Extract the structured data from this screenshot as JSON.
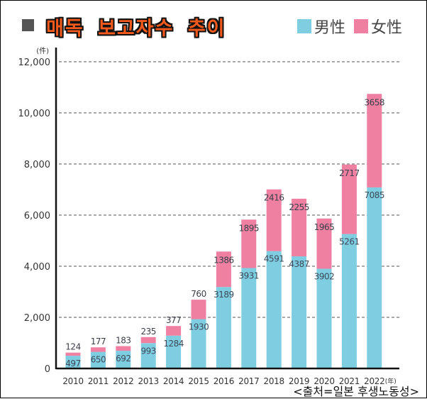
{
  "header": {
    "title": "매독 보고자수 추이",
    "legend": [
      {
        "label": "男性",
        "color": "#7ecde0"
      },
      {
        "label": "女性",
        "color": "#ef80a2"
      }
    ]
  },
  "source": "<출처=일본 후생노동성>",
  "chart_data": {
    "type": "bar",
    "stacked": true,
    "title": "매독 보고자수 추이",
    "xlabel": "",
    "x_unit": "(年)",
    "ylabel": "",
    "y_unit": "(件)",
    "ylim": [
      0,
      12000
    ],
    "yticks": [
      0,
      2000,
      4000,
      6000,
      8000,
      10000,
      12000
    ],
    "ytick_labels": [
      "0",
      "2,000",
      "4,000",
      "6,000",
      "8,000",
      "10,000",
      "12,000"
    ],
    "grid": true,
    "legend_position": "top-right",
    "categories": [
      "2010",
      "2011",
      "2012",
      "2013",
      "2014",
      "2015",
      "2016",
      "2017",
      "2018",
      "2019",
      "2020",
      "2021",
      "2022"
    ],
    "series": [
      {
        "name": "男性",
        "color": "#7ecde0",
        "values": [
          497,
          650,
          692,
          993,
          1284,
          1930,
          3189,
          3931,
          4591,
          4387,
          3902,
          5261,
          7085
        ]
      },
      {
        "name": "女性",
        "color": "#ef80a2",
        "values": [
          124,
          177,
          183,
          235,
          377,
          760,
          1386,
          1895,
          2416,
          2255,
          1965,
          2717,
          3658
        ]
      }
    ]
  }
}
